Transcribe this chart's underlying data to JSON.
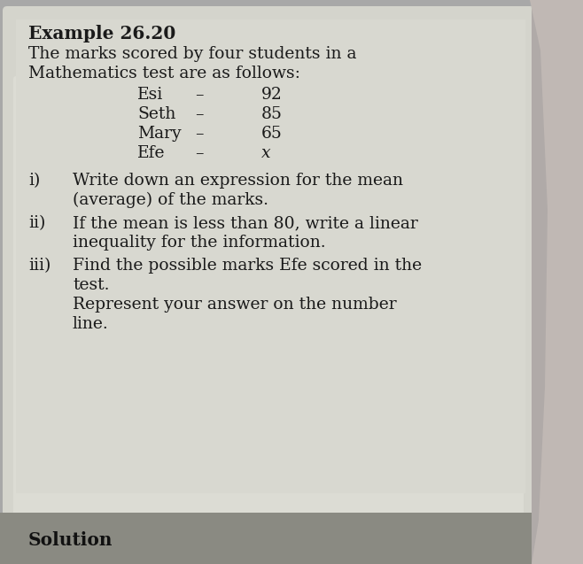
{
  "bg_outer": "#a8a8a8",
  "bg_page": "#d8d8d0",
  "bg_content": "#d0d0c8",
  "bg_solution": "#888880",
  "text_color": "#1a1a1a",
  "title": "Example 26.20",
  "intro1": "The marks scored by four students in a",
  "intro2": "Mathematics test are as follows:",
  "students": [
    {
      "name": "Esi",
      "dash": "–",
      "mark": "92"
    },
    {
      "name": "Seth",
      "dash": "–",
      "mark": "85"
    },
    {
      "name": "Mary",
      "dash": "–",
      "mark": "65"
    },
    {
      "name": "Efe",
      "dash": "–",
      "mark": "x"
    }
  ],
  "items": [
    {
      "num": "i)",
      "line1": "Write down an expression for the mean",
      "line2": "(average) of the marks."
    },
    {
      "num": "ii)",
      "line1": "If the mean is less than 80, write a linear",
      "line2": "inequality for the information."
    },
    {
      "num": "iii)",
      "line1": "Find the possible marks Efe scored in the",
      "line2": "test.",
      "line3": "Represent your answer on the number",
      "line4": "line."
    }
  ],
  "solution": "Solution",
  "fontsize_title": 14.5,
  "fontsize_body": 13.5
}
